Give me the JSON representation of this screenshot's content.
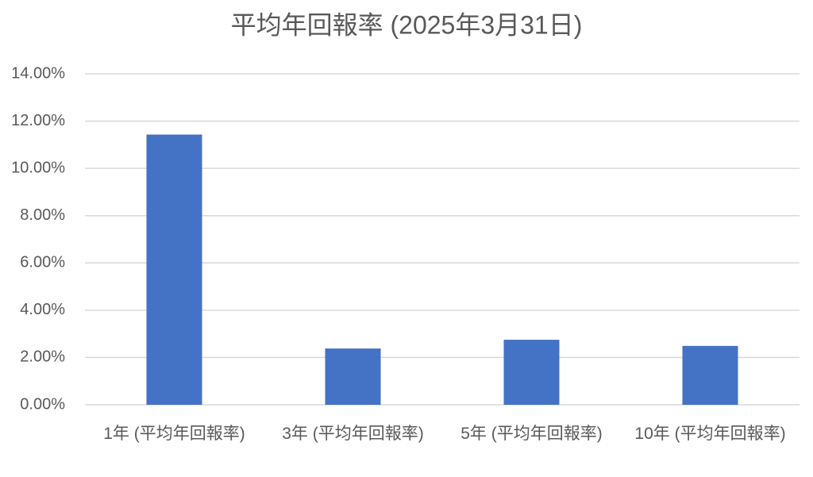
{
  "chart_data": {
    "type": "bar",
    "title": "平均年回報率 (2025年3月31日)",
    "categories": [
      "1年 (平均年回報率)",
      "3年 (平均年回報率)",
      "5年 (平均年回報率)",
      "10年 (平均年回報率)"
    ],
    "values": [
      11.43,
      2.38,
      2.75,
      2.49
    ],
    "color": "#4472c4",
    "ylim": [
      0,
      14
    ],
    "yticks": [
      {
        "value": 0,
        "label": "0.00%"
      },
      {
        "value": 2,
        "label": "2.00%"
      },
      {
        "value": 4,
        "label": "4.00%"
      },
      {
        "value": 6,
        "label": "6.00%"
      },
      {
        "value": 8,
        "label": "8.00%"
      },
      {
        "value": 10,
        "label": "10.00%"
      },
      {
        "value": 12,
        "label": "12.00%"
      },
      {
        "value": 14,
        "label": "14.00%"
      }
    ],
    "grid": true
  }
}
